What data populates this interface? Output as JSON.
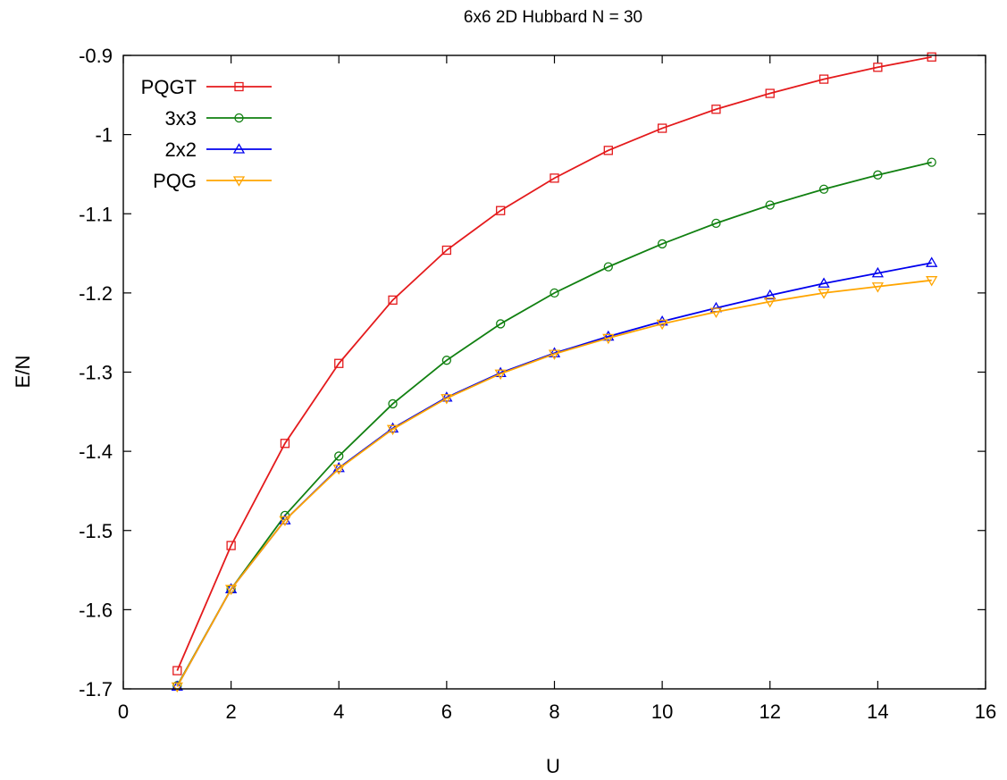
{
  "chart_data": {
    "type": "line",
    "title": "6x6 2D Hubbard N = 30",
    "xlabel": "U",
    "ylabel": "E/N",
    "xlim": [
      0,
      16
    ],
    "ylim": [
      -1.7,
      -0.9
    ],
    "xticks": [
      0,
      2,
      4,
      6,
      8,
      10,
      12,
      14,
      16
    ],
    "yticks": [
      -1.7,
      -1.6,
      -1.5,
      -1.4,
      -1.3,
      -1.2,
      -1.1,
      -1.0,
      -0.9
    ],
    "xtick_labels": [
      "0",
      "2",
      "4",
      "6",
      "8",
      "10",
      "12",
      "14",
      "16"
    ],
    "ytick_labels": [
      "-1.7",
      "-1.6",
      "-1.5",
      "-1.4",
      "-1.3",
      "-1.2",
      "-1.1",
      "-1",
      "-0.9"
    ],
    "grid": false,
    "legend_position": "top-left",
    "x": [
      1,
      2,
      3,
      4,
      5,
      6,
      7,
      8,
      9,
      10,
      11,
      12,
      13,
      14,
      15
    ],
    "series": [
      {
        "name": "PQGT",
        "color": "#e41a1c",
        "marker": "square",
        "values": [
          -1.677,
          -1.519,
          -1.39,
          -1.289,
          -1.209,
          -1.146,
          -1.096,
          -1.055,
          -1.02,
          -0.992,
          -0.968,
          -0.948,
          -0.93,
          -0.915,
          -0.902
        ]
      },
      {
        "name": "3x3",
        "color": "#118011",
        "marker": "circle",
        "values": [
          -1.696,
          -1.574,
          -1.481,
          -1.406,
          -1.34,
          -1.285,
          -1.239,
          -1.2,
          -1.167,
          -1.138,
          -1.112,
          -1.089,
          -1.069,
          -1.051,
          -1.035
        ]
      },
      {
        "name": "2x2",
        "color": "#0000ee",
        "marker": "triangle-up",
        "values": [
          -1.697,
          -1.574,
          -1.487,
          -1.421,
          -1.371,
          -1.332,
          -1.301,
          -1.276,
          -1.255,
          -1.236,
          -1.219,
          -1.203,
          -1.188,
          -1.175,
          -1.162
        ]
      },
      {
        "name": "PQG",
        "color": "#ffa500",
        "marker": "triangle-down",
        "values": [
          -1.697,
          -1.574,
          -1.487,
          -1.422,
          -1.372,
          -1.333,
          -1.302,
          -1.277,
          -1.257,
          -1.239,
          -1.224,
          -1.211,
          -1.2,
          -1.192,
          -1.184
        ]
      }
    ]
  }
}
